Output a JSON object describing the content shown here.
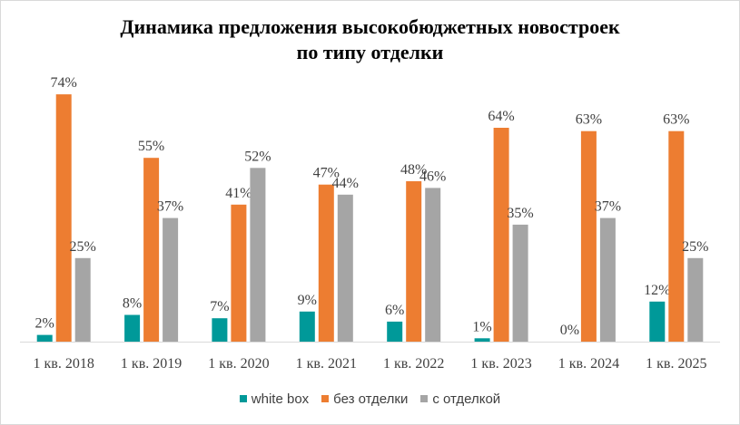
{
  "chart_data": {
    "type": "bar",
    "title_line1": "Динамика  предложения высокобюджетных новостроек",
    "title_line2": "по типу  отделки",
    "categories": [
      "1 кв. 2018",
      "1 кв. 2019",
      "1 кв. 2020",
      "1 кв. 2021",
      "1 кв. 2022",
      "1 кв. 2023",
      "1 кв. 2024",
      "1 кв. 2025"
    ],
    "series": [
      {
        "name": "white box",
        "color": "#009999",
        "values": [
          2,
          8,
          7,
          9,
          6,
          1,
          0,
          12
        ],
        "labels": [
          "2%",
          "8%",
          "7%",
          "9%",
          "6%",
          "1%",
          "0%",
          "12%"
        ]
      },
      {
        "name": "без отделки",
        "color": "#ED7D31",
        "values": [
          74,
          55,
          41,
          47,
          48,
          64,
          63,
          63
        ],
        "labels": [
          "74%",
          "55%",
          "41%",
          "47%",
          "48%",
          "64%",
          "63%",
          "63%"
        ]
      },
      {
        "name": "с отделкой",
        "color": "#A5A5A5",
        "values": [
          25,
          37,
          52,
          44,
          46,
          35,
          37,
          25
        ],
        "labels": [
          "25%",
          "37%",
          "52%",
          "44%",
          "46%",
          "35%",
          "37%",
          "25%"
        ]
      }
    ],
    "ylim": [
      0,
      80
    ],
    "legend": "bottom"
  }
}
